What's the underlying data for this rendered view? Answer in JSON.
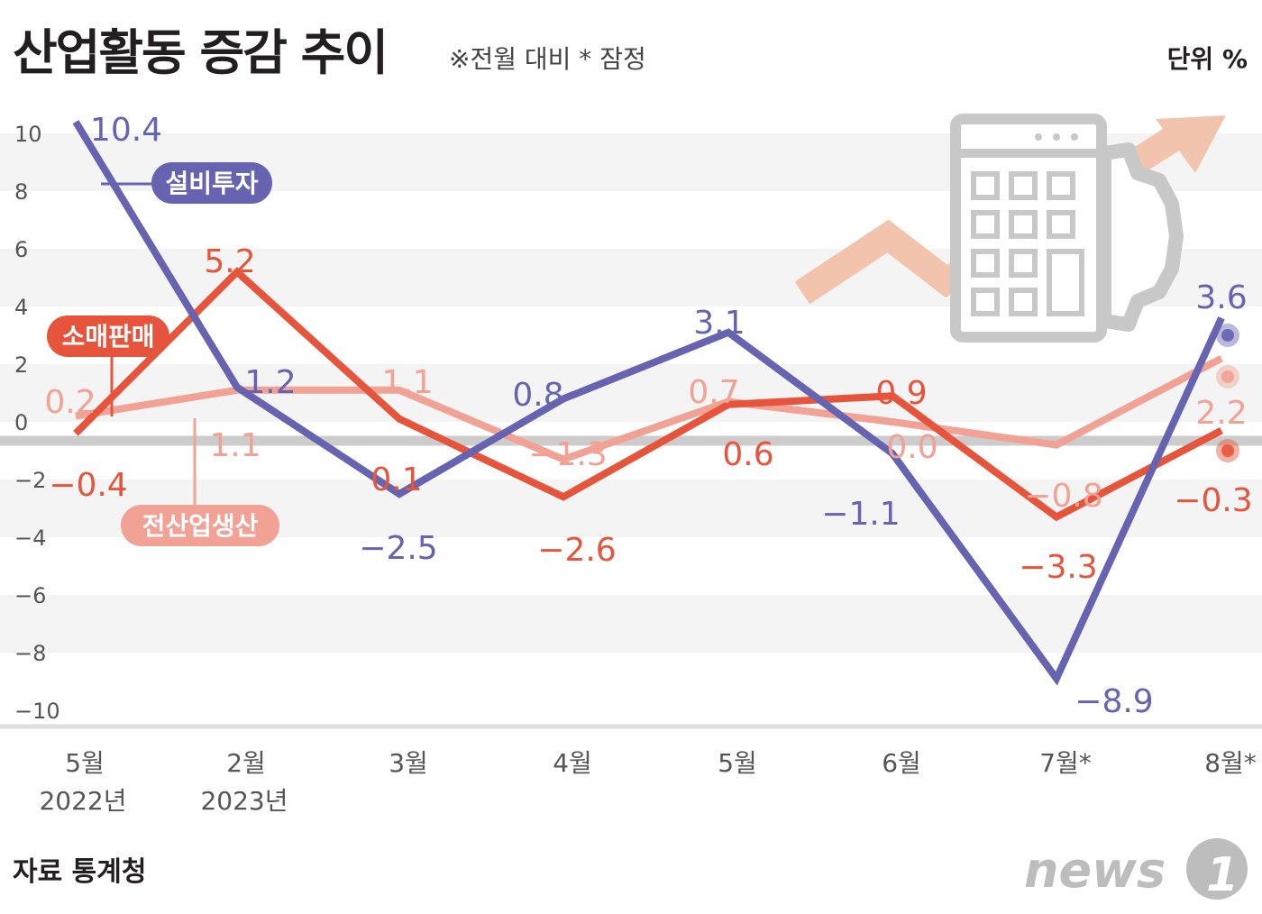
{
  "header": {
    "title": "산업활동 증감 추이",
    "subtitle": "※전월 대비  * 잠정",
    "unit": "단위 %"
  },
  "footer": {
    "source": "자료 통계청",
    "logo_text": "news1"
  },
  "colors": {
    "equipment": "#6663b1",
    "retail": "#e7543c",
    "production": "#f2a195",
    "band": "#f4f4f4",
    "axis_text": "#555555",
    "zero_line": "#cccccc",
    "icon": "#c8c8c8",
    "arrow": "#f3c4ad"
  },
  "chart_data": {
    "type": "line",
    "title": "산업활동 증감 추이",
    "unit": "%",
    "categories": [
      "5월",
      "2월",
      "3월",
      "4월",
      "5월",
      "6월",
      "7월*",
      "8월*"
    ],
    "category_years": [
      "2022년",
      "2023년",
      "",
      "",
      "",
      "",
      "",
      ""
    ],
    "ylim": [
      -10,
      10
    ],
    "yticks": [
      10,
      8,
      6,
      4,
      2,
      0,
      -2,
      -4,
      -6,
      -8,
      -10
    ],
    "ytick_labels": [
      "10",
      "8",
      "6",
      "4",
      "2",
      "0",
      "−2",
      "−4",
      "−6",
      "−8",
      "−10"
    ],
    "grid": "alternating bands",
    "series": [
      {
        "name": "설비투자",
        "color": "#6663b1",
        "values": [
          10.4,
          1.2,
          -2.5,
          0.8,
          3.1,
          -1.1,
          -8.9,
          3.6
        ],
        "labels": [
          "10.4",
          "1.2",
          "−2.5",
          "0.8",
          "3.1",
          "−1.1",
          "−8.9",
          "3.6"
        ]
      },
      {
        "name": "소매판매",
        "color": "#e7543c",
        "values": [
          -0.4,
          5.2,
          0.1,
          -2.6,
          0.6,
          0.9,
          -3.3,
          -0.3
        ],
        "labels": [
          "−0.4",
          "5.2",
          "0.1",
          "−2.6",
          "0.6",
          "0.9",
          "−3.3",
          "−0.3"
        ]
      },
      {
        "name": "전산업생산",
        "color": "#f2a195",
        "values": [
          0.2,
          1.1,
          1.1,
          -1.3,
          0.7,
          0.0,
          -0.8,
          2.2
        ],
        "labels": [
          "0.2",
          "1.1",
          "1.1",
          "−1.3",
          "0.7",
          "0.0",
          "−0.8",
          "2.2"
        ]
      }
    ]
  }
}
